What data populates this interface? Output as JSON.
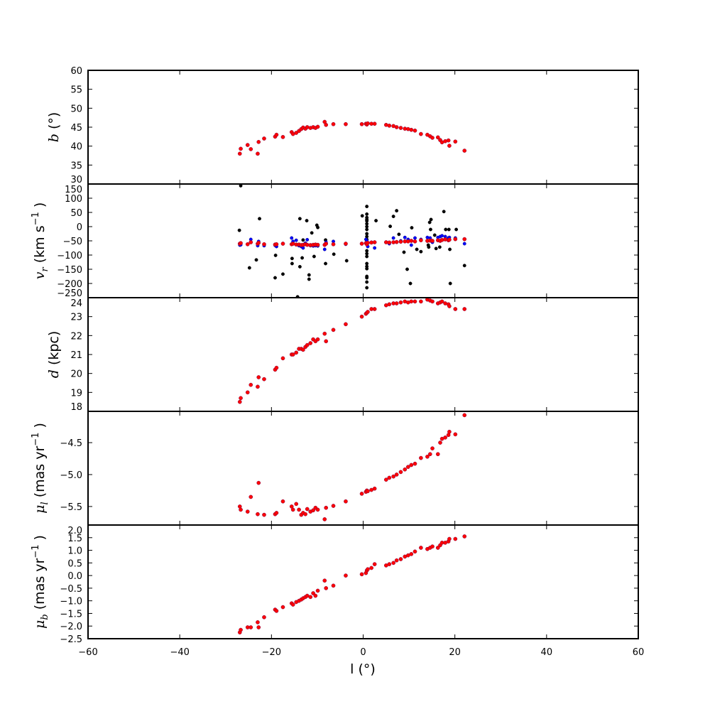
{
  "chart_data": [
    {
      "type": "scatter",
      "panel": "b",
      "ylabel": {
        "sym": "b",
        "unit": " (°)"
      },
      "ylim": [
        30,
        60
      ],
      "yticks": [
        "30",
        "35",
        "40",
        "45",
        "50",
        "55",
        "60"
      ],
      "series": [
        {
          "name": "b",
          "color": "#ff0000",
          "key": "b"
        }
      ]
    },
    {
      "type": "scatter",
      "panel": "vr",
      "ylabel": {
        "sym": "v",
        "sub": "r",
        "unit": " (km s",
        "sup": "−1",
        "close": ")"
      },
      "ylim": [
        -250,
        150
      ],
      "yticks": [
        "−250",
        "−200",
        "−150",
        "−100",
        "−50",
        "0",
        "50",
        "100",
        "150"
      ],
      "series": [
        {
          "name": "observed",
          "color": "#000000",
          "key": "vr_black"
        },
        {
          "name": "model-blue",
          "color": "#0000ff",
          "key": "vr_blue"
        },
        {
          "name": "model-red",
          "color": "#ff0000",
          "key": "vr_red"
        }
      ]
    },
    {
      "type": "scatter",
      "panel": "d",
      "ylabel": {
        "sym": "d",
        "unit": " (kpc)"
      },
      "ylim": [
        18,
        24
      ],
      "yticks": [
        "18",
        "19",
        "20",
        "21",
        "22",
        "23",
        "24"
      ],
      "series": [
        {
          "name": "d",
          "color": "#ff0000",
          "key": "d"
        }
      ]
    },
    {
      "type": "scatter",
      "panel": "mul",
      "ylabel": {
        "sym": "μ",
        "sub": "l",
        "unit": " (mas yr",
        "sup": "−1",
        "close": ")"
      },
      "ylim": [
        -5.79,
        -4.01
      ],
      "yticks": [
        "−5.5",
        "−5.0",
        "−4.5"
      ],
      "series": [
        {
          "name": "mu_l",
          "color": "#ff0000",
          "key": "mul"
        }
      ]
    },
    {
      "type": "scatter",
      "panel": "mub",
      "ylabel": {
        "sym": "μ",
        "sub": "b",
        "unit": " (mas yr",
        "sup": "−1",
        "close": ")"
      },
      "ylim": [
        -2.5,
        2.0
      ],
      "yticks": [
        "−2.5",
        "−2.0",
        "−1.5",
        "−1.0",
        "−0.5",
        "0.0",
        "0.5",
        "1.0",
        "1.5",
        "2.0"
      ],
      "series": [
        {
          "name": "mu_b",
          "color": "#ff0000",
          "key": "mub"
        }
      ]
    }
  ],
  "xaxis": {
    "label_sym": "l",
    "label_unit": " (°)",
    "xlim": [
      -60,
      60
    ],
    "xticks": [
      "−60",
      "−40",
      "−20",
      "0",
      "20",
      "40",
      "60"
    ]
  },
  "points": {
    "l": [
      -26.9,
      -26.7,
      -25.2,
      -24.5,
      -23.0,
      -22.8,
      -21.6,
      -19.2,
      -18.9,
      -17.5,
      -15.6,
      -15.3,
      -14.6,
      -14.0,
      -13.5,
      -13.1,
      -12.6,
      -12.2,
      -11.5,
      -10.9,
      -10.4,
      -9.9,
      -8.4,
      -8.1,
      -6.5,
      -3.8,
      -0.3,
      0.6,
      0.8,
      1.0,
      1.8,
      2.5,
      5.0,
      5.7,
      6.6,
      7.3,
      8.2,
      9.1,
      9.8,
      10.5,
      11.3,
      12.6,
      14.0,
      14.6,
      15.1,
      16.3,
      16.8,
      17.2,
      17.9,
      18.6,
      18.8,
      20.1,
      22.1
    ],
    "b": [
      38.0,
      39.3,
      40.3,
      39.2,
      38.0,
      41.1,
      42.0,
      42.5,
      43.0,
      42.4,
      43.7,
      43.2,
      43.5,
      44.0,
      44.5,
      44.9,
      44.6,
      45.0,
      44.8,
      45.0,
      44.8,
      45.1,
      46.4,
      45.6,
      45.8,
      45.8,
      45.8,
      45.9,
      45.7,
      46.0,
      45.9,
      45.9,
      45.6,
      45.4,
      45.3,
      45.0,
      44.8,
      44.6,
      44.5,
      44.3,
      44.1,
      43.2,
      43.0,
      42.6,
      42.2,
      42.3,
      41.6,
      41.0,
      41.3,
      41.5,
      40.1,
      41.2,
      38.8
    ],
    "d": [
      18.5,
      18.7,
      19.0,
      19.4,
      19.3,
      19.8,
      19.7,
      20.2,
      20.3,
      20.8,
      21.0,
      21.0,
      21.1,
      21.3,
      21.3,
      21.25,
      21.4,
      21.5,
      21.6,
      21.8,
      21.7,
      21.8,
      22.1,
      21.7,
      22.3,
      22.6,
      23.0,
      23.15,
      23.2,
      23.25,
      23.4,
      23.4,
      23.6,
      23.65,
      23.7,
      23.7,
      23.75,
      23.8,
      23.75,
      23.8,
      23.8,
      23.8,
      23.9,
      23.85,
      23.8,
      23.7,
      23.75,
      23.8,
      23.7,
      23.65,
      23.55,
      23.4,
      23.4
    ],
    "mul": [
      -5.5,
      -5.55,
      -5.58,
      -5.35,
      -5.62,
      -5.13,
      -5.63,
      -5.62,
      -5.6,
      -5.42,
      -5.5,
      -5.55,
      -5.46,
      -5.55,
      -5.63,
      -5.6,
      -5.62,
      -5.54,
      -5.58,
      -5.56,
      -5.52,
      -5.55,
      -5.7,
      -5.52,
      -5.49,
      -5.42,
      -5.3,
      -5.27,
      -5.25,
      -5.26,
      -5.24,
      -5.22,
      -5.08,
      -5.05,
      -5.03,
      -5.0,
      -4.96,
      -4.92,
      -4.88,
      -4.85,
      -4.83,
      -4.74,
      -4.72,
      -4.68,
      -4.59,
      -4.68,
      -4.5,
      -4.44,
      -4.42,
      -4.38,
      -4.33,
      -4.37,
      -4.07
    ],
    "mub": [
      -2.25,
      -2.15,
      -2.05,
      -2.05,
      -1.85,
      -2.05,
      -1.65,
      -1.35,
      -1.4,
      -1.25,
      -1.1,
      -1.15,
      -1.05,
      -1.0,
      -0.95,
      -0.9,
      -0.85,
      -0.8,
      -0.85,
      -0.7,
      -0.8,
      -0.6,
      -0.2,
      -0.5,
      -0.4,
      0.0,
      0.05,
      0.1,
      0.2,
      0.25,
      0.3,
      0.45,
      0.4,
      0.45,
      0.5,
      0.6,
      0.65,
      0.75,
      0.8,
      0.85,
      0.95,
      1.1,
      1.05,
      1.1,
      1.15,
      1.1,
      1.2,
      1.3,
      1.3,
      1.35,
      1.45,
      1.45,
      1.55
    ],
    "vr_red": [
      -60,
      -58,
      -62,
      -55,
      -60,
      -57,
      -62,
      -63,
      -62,
      -60,
      -62,
      -60,
      -63,
      -63,
      -65,
      -64,
      -62,
      -64,
      -65,
      -64,
      -63,
      -64,
      -64,
      -60,
      -62,
      -60,
      -60,
      -58,
      -62,
      -57,
      -56,
      -55,
      -55,
      -56,
      -55,
      -54,
      -53,
      -52,
      -52,
      -50,
      -52,
      -48,
      -50,
      -49,
      -50,
      -48,
      -50,
      -47,
      -45,
      -48,
      -46,
      -44,
      -44
    ],
    "vr_blue": [
      -65,
      -64,
      -62,
      -45,
      -67,
      -52,
      -67,
      -66,
      -70,
      -60,
      -40,
      -52,
      -48,
      -67,
      -70,
      -75,
      -58,
      -46,
      -67,
      -68,
      -67,
      -68,
      -80,
      -55,
      -52,
      -62,
      -60,
      -45,
      -50,
      -70,
      -55,
      -75,
      -55,
      -60,
      -40,
      -55,
      -50,
      -38,
      -45,
      -65,
      -40,
      -45,
      -38,
      -40,
      -55,
      -38,
      -35,
      -32,
      -35,
      -40,
      -38,
      -40,
      -60
    ],
    "vr_black_l": [
      -26.7,
      -27.0,
      -24.8,
      -23.3,
      -22.6,
      -19.2,
      -19.1,
      -17.5,
      -15.5,
      -15.5,
      -14.3,
      -13.8,
      -13.8,
      -13.3,
      -13.1,
      -12.3,
      -11.8,
      -11.8,
      -11.2,
      -10.7,
      -10.1,
      -9.9,
      -8.2,
      -8.2,
      -6.4,
      -3.6,
      -0.2,
      0.8,
      0.8,
      0.8,
      0.8,
      0.8,
      0.8,
      0.8,
      0.8,
      0.8,
      0.8,
      0.8,
      0.8,
      0.8,
      0.8,
      0.8,
      0.8,
      0.8,
      0.8,
      0.8,
      0.8,
      0.8,
      2.8,
      5.9,
      6.6,
      7.3,
      7.8,
      8.9,
      9.6,
      10.3,
      10.6,
      11.7,
      12.6,
      14.2,
      14.3,
      14.5,
      14.8,
      14.7,
      15.6,
      15.9,
      16.7,
      17.6,
      18.0,
      18.7,
      18.9,
      19.0,
      20.3,
      22.1
    ],
    "vr_black_v": [
      144,
      -13,
      -145,
      -117,
      28,
      -180,
      -101,
      -167,
      -112,
      -130,
      -247,
      28,
      -141,
      -110,
      -47,
      21,
      -170,
      -185,
      -22,
      -105,
      5,
      -3,
      -47,
      -130,
      -97,
      -120,
      38,
      71,
      44,
      32,
      25,
      20,
      10,
      0,
      -10,
      -25,
      -35,
      -45,
      -85,
      -95,
      -105,
      -130,
      -140,
      -148,
      -175,
      -180,
      -195,
      -215,
      21,
      1,
      36,
      56,
      -27,
      -90,
      -150,
      -200,
      -4,
      -80,
      -88,
      -65,
      -72,
      15,
      25,
      -10,
      -30,
      -77,
      -72,
      53,
      -10,
      -10,
      -80,
      -200,
      -10,
      -137
    ]
  }
}
